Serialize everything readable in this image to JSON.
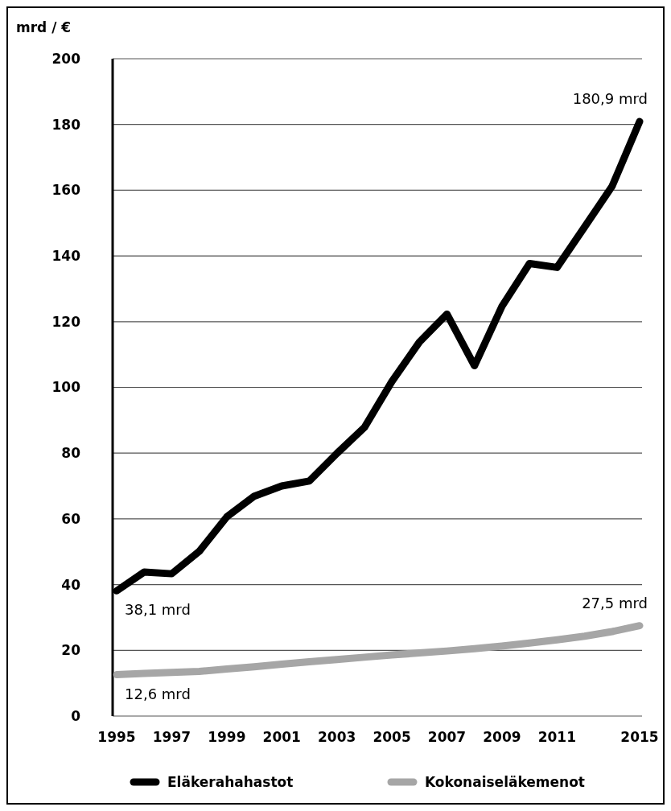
{
  "chart_data": {
    "type": "line",
    "ylabel": "mrd / €",
    "categories": [
      "1995",
      null,
      "1997",
      null,
      "1999",
      null,
      "2001",
      null,
      "2003",
      null,
      "2005",
      null,
      "2007",
      null,
      "2009",
      null,
      "2011",
      null,
      null,
      "2015"
    ],
    "series": [
      {
        "name": "Eläkerahahastot",
        "color": "#000000",
        "values": [
          38.1,
          43.8,
          43.3,
          50.1,
          60.6,
          66.9,
          70.0,
          71.5,
          79.9,
          87.8,
          101.8,
          113.8,
          122.3,
          106.6,
          124.7,
          137.7,
          136.5,
          148.8,
          161.2,
          180.9
        ]
      },
      {
        "name": "Kokonaiseläkemenot",
        "color": "#a6a6a6",
        "values": [
          12.6,
          13.0,
          13.3,
          13.6,
          14.3,
          15.0,
          15.8,
          16.5,
          17.2,
          17.9,
          18.6,
          19.2,
          19.8,
          20.5,
          21.3,
          22.2,
          23.2,
          24.3,
          25.7,
          27.5
        ]
      }
    ],
    "ylim": [
      0,
      200
    ],
    "yticks": [
      0,
      20,
      40,
      60,
      80,
      100,
      120,
      140,
      160,
      180,
      200
    ],
    "grid": "y",
    "legend": "bottom",
    "line_style": "solid",
    "marker": "none",
    "annotations": [
      {
        "text": "180,9 mrd",
        "x": "2015",
        "y": 180.9
      },
      {
        "text": "38,1 mrd",
        "x": "1995",
        "y": 38.1
      },
      {
        "text": "27,5 mrd",
        "x": "2015",
        "y": 27.5
      },
      {
        "text": "12,6 mrd",
        "x": "1995",
        "y": 12.6
      }
    ]
  }
}
